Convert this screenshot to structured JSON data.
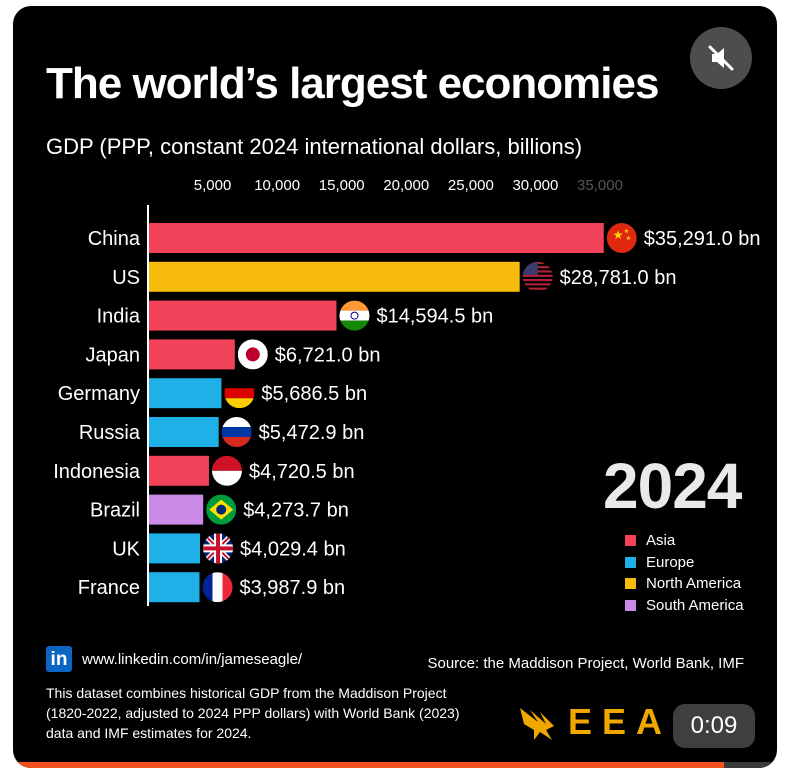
{
  "header": {
    "title": "The world’s largest economies",
    "subtitle": "GDP (PPP, constant 2024 international dollars, billions)"
  },
  "year": "2024",
  "chart_data": {
    "type": "bar",
    "orientation": "horizontal",
    "title": "The world’s largest economies",
    "subtitle": "GDP (PPP, constant 2024 international dollars, billions)",
    "xlim": [
      0,
      35000
    ],
    "x_ticks": [
      5000,
      10000,
      15000,
      20000,
      25000,
      30000,
      35000
    ],
    "x_tick_labels": [
      "5,000",
      "10,000",
      "15,000",
      "20,000",
      "25,000",
      "30,000",
      "35,000"
    ],
    "categories": [
      "China",
      "US",
      "India",
      "Japan",
      "Germany",
      "Russia",
      "Indonesia",
      "Brazil",
      "UK",
      "France"
    ],
    "values": [
      35291.0,
      28781.0,
      14594.5,
      6721.0,
      5686.5,
      5472.9,
      4720.5,
      4273.7,
      4029.4,
      3987.9
    ],
    "value_labels": [
      "$35,291.0 bn",
      "$28,781.0 bn",
      "$14,594.5 bn",
      "$6,721.0 bn",
      "$5,686.5 bn",
      "$5,472.9 bn",
      "$4,720.5 bn",
      "$4,273.7 bn",
      "$4,029.4 bn",
      "$3,987.9 bn"
    ],
    "regions": [
      "Asia",
      "North America",
      "Asia",
      "Asia",
      "Europe",
      "Europe",
      "Asia",
      "South America",
      "Europe",
      "Europe"
    ],
    "flags": [
      "china-flag",
      "us-flag",
      "india-flag",
      "japan-flag",
      "germany-flag",
      "russia-flag",
      "indonesia-flag",
      "brazil-flag",
      "uk-flag",
      "france-flag"
    ],
    "legend": [
      {
        "label": "Asia",
        "color": "#f2435a"
      },
      {
        "label": "Europe",
        "color": "#1fb0e8"
      },
      {
        "label": "North America",
        "color": "#f7bb0b"
      },
      {
        "label": "South America",
        "color": "#c98be6"
      }
    ],
    "legend_position": "bottom-right"
  },
  "footer": {
    "linkedin_icon": "in",
    "linkedin_url": "www.linkedin.com/in/jameseagle/",
    "source": "Source: the Maddison Project, World Bank, IMF",
    "footnote_lines": [
      "This dataset combines historical GDP from the Maddison Project",
      "(1820-2022, adjusted to 2024 PPP dollars) with World Bank (2023)",
      "data and IMF estimates for 2024."
    ],
    "brand": "EEA"
  },
  "video": {
    "time": "0:09",
    "progress": 0.93,
    "mute_icon": "muted-speaker-icon"
  },
  "colors": {
    "background": "#000000",
    "axis": "#ffffff",
    "progress": "#f4511e",
    "brand": "#f0a800"
  }
}
